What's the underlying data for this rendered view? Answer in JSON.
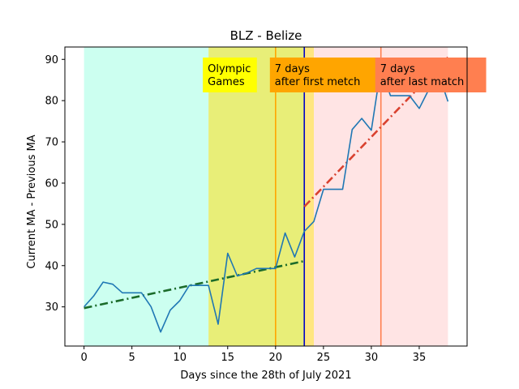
{
  "chart_data": {
    "type": "line",
    "title": "BLZ - Belize",
    "xlabel": "Days since the 28th of July 2021",
    "ylabel": "Current MA - Previous MA",
    "xlim": [
      -2,
      40
    ],
    "ylim": [
      20.5,
      93
    ],
    "x_ticks": [
      0,
      5,
      10,
      15,
      20,
      25,
      30,
      35
    ],
    "y_ticks": [
      30,
      40,
      50,
      60,
      70,
      80,
      90
    ],
    "grid": false,
    "series": [
      {
        "color": "#1f77b4",
        "x": [
          0,
          1,
          2,
          3,
          4,
          5,
          6,
          7,
          8,
          9,
          10,
          11,
          12,
          13,
          14,
          15,
          16,
          17,
          18,
          19,
          20,
          21,
          22,
          23,
          24,
          25,
          26,
          27,
          28,
          29,
          30,
          31,
          32,
          33,
          34,
          35,
          36,
          37,
          38
        ],
        "values": [
          30,
          32.6,
          36,
          35.5,
          33.4,
          33.4,
          33.4,
          30,
          23.9,
          29.2,
          31.5,
          35.2,
          35.2,
          35.2,
          25.8,
          43,
          37.5,
          38.2,
          39.3,
          39.3,
          39.3,
          47.9,
          42.1,
          48.3,
          50.7,
          58.5,
          58.5,
          58.5,
          73,
          75.7,
          72.8,
          88,
          81.2,
          81.2,
          81.2,
          78.1,
          82.7,
          86.7,
          79.8
        ]
      }
    ],
    "trend_lines": [
      {
        "color": "#1b6b2a",
        "style": "dash-dot",
        "x": [
          0,
          23
        ],
        "y": [
          29.7,
          41.1
        ]
      },
      {
        "color": "#d9412f",
        "style": "dash-dot",
        "x": [
          23,
          38
        ],
        "y": [
          54.3,
          90.5
        ]
      }
    ],
    "shaded_regions": [
      {
        "x": [
          0,
          13
        ],
        "color": "#ccfff0"
      },
      {
        "x": [
          13,
          24
        ],
        "color": "#e8ee78"
      },
      {
        "x": [
          23,
          24
        ],
        "color": "#ffe680"
      },
      {
        "x": [
          24,
          38
        ],
        "color": "#ffe4e4"
      }
    ],
    "vertical_lines": [
      {
        "x": 20,
        "color": "#ffa500"
      },
      {
        "x": 23,
        "color": "#0000c8"
      },
      {
        "x": 31,
        "color": "#ff7f50"
      }
    ],
    "annotations": [
      {
        "lines": [
          "Olympic",
          "Games"
        ],
        "x": 13,
        "color": "#ffff00"
      },
      {
        "lines": [
          "7 days",
          "after first metch"
        ],
        "x": 20,
        "color": "#ffa500"
      },
      {
        "lines": [
          "7 days",
          "after last match"
        ],
        "x": 31,
        "color": "#ff7f50"
      }
    ]
  }
}
